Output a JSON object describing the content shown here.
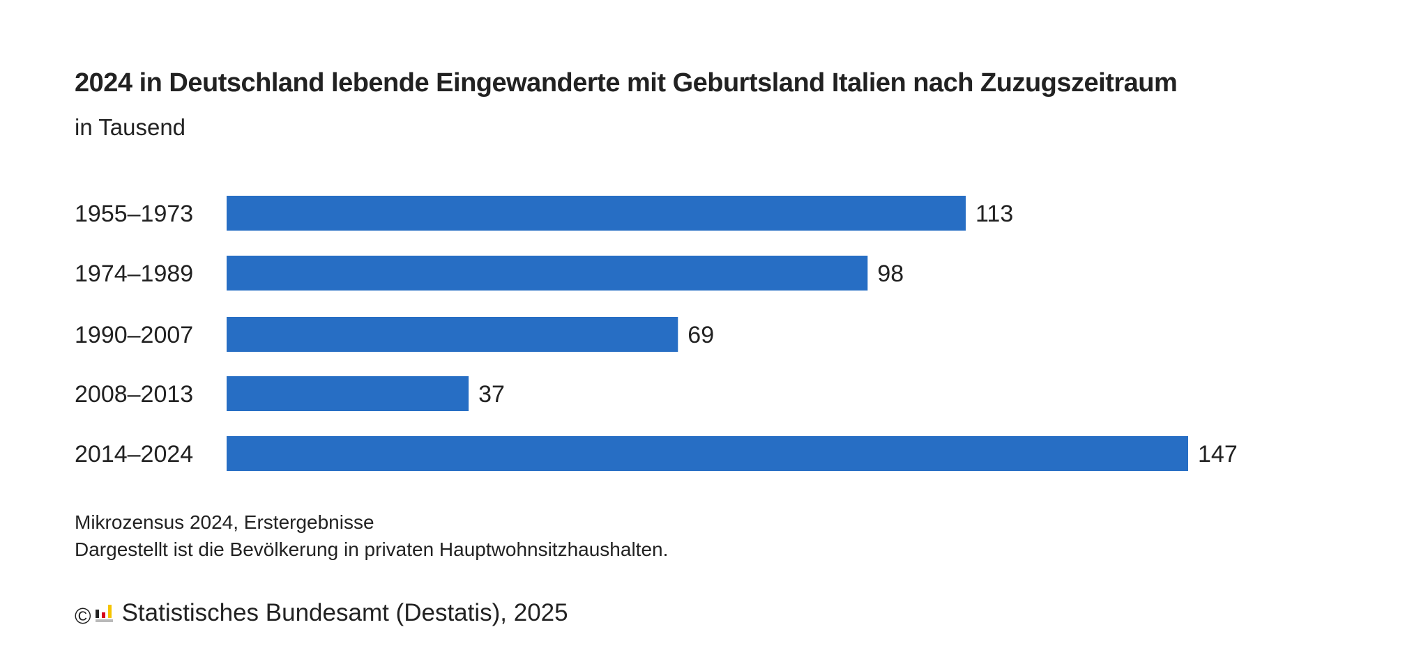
{
  "header": {
    "title": "2024 in Deutschland lebende Eingewanderte mit Geburtsland Italien nach Zuzugszeitraum",
    "subtitle": "in Tausend"
  },
  "notes": [
    "Mikrozensus 2024, Erstergebnisse",
    "Dargestellt ist die Bevölkerung in privaten Hauptwohnsitzhaushalten."
  ],
  "footer": {
    "copyright_symbol": "©",
    "logo_icon": "destatis-logo-icon",
    "source": "Statistisches Bundesamt (Destatis), 2025"
  },
  "colors": {
    "bar": "#276EC4",
    "text": "#222222",
    "logo_black": "#222222",
    "logo_red": "#D6001C",
    "logo_gold": "#F5C400",
    "logo_gray": "#B9B9B9"
  },
  "chart_data": {
    "type": "bar",
    "orientation": "horizontal",
    "title": "2024 in Deutschland lebende Eingewanderte mit Geburtsland Italien nach Zuzugszeitraum",
    "subtitle": "in Tausend",
    "xlabel": "",
    "ylabel": "",
    "unit": "Tausend",
    "categories": [
      "1955–1973",
      "1974–1989",
      "1990–2007",
      "2008–2013",
      "2014–2024"
    ],
    "values": [
      113,
      98,
      69,
      37,
      147
    ],
    "xlim": [
      0,
      147
    ],
    "grid": false,
    "legend": "none",
    "data_labels": true
  }
}
